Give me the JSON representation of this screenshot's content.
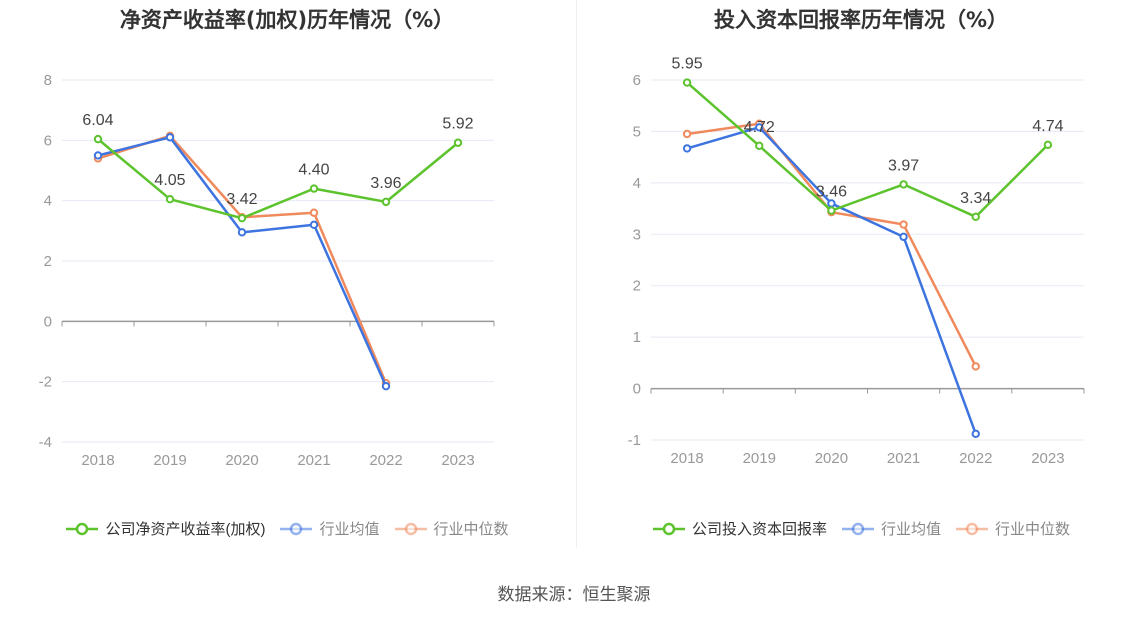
{
  "colors": {
    "company": "#5cc32d",
    "industry_avg": "#3d74e0",
    "industry_median": "#f08a5d",
    "grid": "#e6e9f5",
    "axis": "#999999",
    "tick_label": "#999999",
    "value_label": "#444444"
  },
  "source_text": "数据来源：恒生聚源",
  "chart_data": [
    {
      "type": "line",
      "title": "净资产收益率(加权)历年情况（%）",
      "categories": [
        "2018",
        "2019",
        "2020",
        "2021",
        "2022",
        "2023"
      ],
      "ylim": [
        -4,
        8
      ],
      "yticks": [
        -4,
        -2,
        0,
        2,
        4,
        6,
        8
      ],
      "ytick_labels": [
        "-4",
        "-2",
        "0",
        "2",
        "4",
        "6",
        "8"
      ],
      "grid": true,
      "legend_position": "bottom",
      "series": [
        {
          "name": "公司净资产收益率(加权)",
          "key": "company",
          "values": [
            6.04,
            4.05,
            3.42,
            4.4,
            3.96,
            5.92
          ],
          "labels": [
            "6.04",
            "4.05",
            "3.42",
            "4.40",
            "3.96",
            "5.92"
          ]
        },
        {
          "name": "行业均值",
          "key": "industry_avg",
          "values": [
            5.5,
            6.1,
            2.95,
            3.2,
            -2.15,
            null
          ]
        },
        {
          "name": "行业中位数",
          "key": "industry_median",
          "values": [
            5.4,
            6.15,
            3.45,
            3.6,
            -2.05,
            null
          ]
        }
      ]
    },
    {
      "type": "line",
      "title": "投入资本回报率历年情况（%）",
      "categories": [
        "2018",
        "2019",
        "2020",
        "2021",
        "2022",
        "2023"
      ],
      "ylim": [
        -1,
        6
      ],
      "yticks": [
        -1,
        0,
        1,
        2,
        3,
        4,
        5,
        6
      ],
      "ytick_labels": [
        "-1",
        "0",
        "1",
        "2",
        "3",
        "4",
        "5",
        "6"
      ],
      "grid": true,
      "legend_position": "bottom",
      "series": [
        {
          "name": "公司投入资本回报率",
          "key": "company",
          "values": [
            5.95,
            4.72,
            3.46,
            3.97,
            3.34,
            4.74
          ],
          "labels": [
            "5.95",
            "4.72",
            "3.46",
            "3.97",
            "3.34",
            "4.74"
          ]
        },
        {
          "name": "行业均值",
          "key": "industry_avg",
          "values": [
            4.67,
            5.08,
            3.6,
            2.95,
            -0.88,
            null
          ]
        },
        {
          "name": "行业中位数",
          "key": "industry_median",
          "values": [
            4.95,
            5.15,
            3.43,
            3.19,
            0.43,
            null
          ]
        }
      ]
    }
  ]
}
